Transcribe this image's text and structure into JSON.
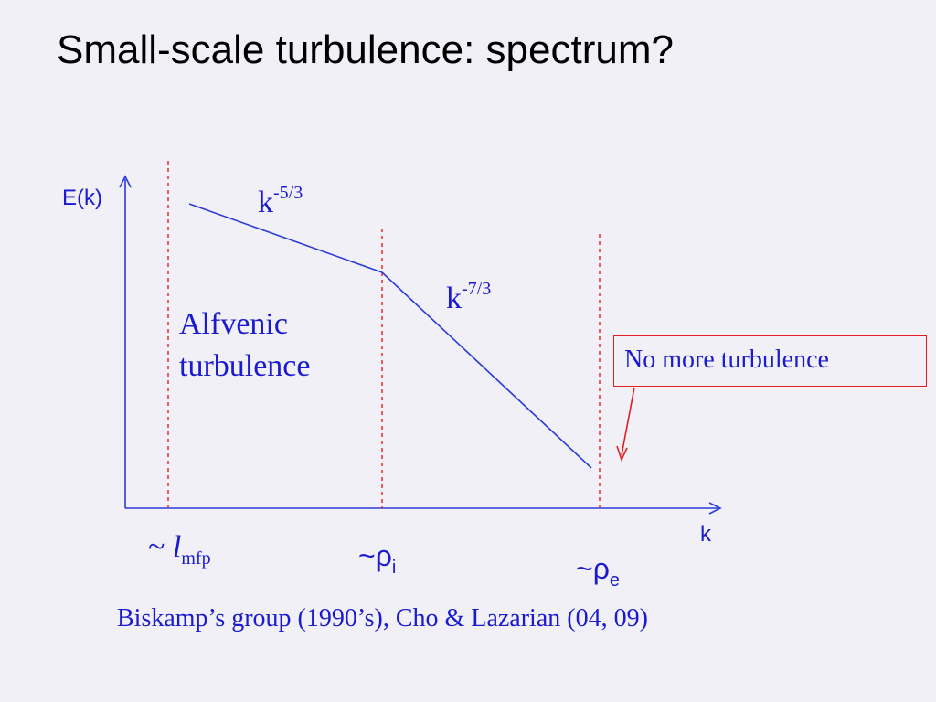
{
  "title": "Small-scale turbulence: spectrum?",
  "diagram": {
    "y_axis_label": "E(k)",
    "x_axis_label": "k",
    "slopes": [
      {
        "base": "k",
        "exponent": "-5/3"
      },
      {
        "base": "k",
        "exponent": "-7/3"
      }
    ],
    "region_label_line1": "Alfvenic",
    "region_label_line2": "turbulence",
    "ticks": {
      "mfp": {
        "prefix": "~ ",
        "symbol": "l",
        "sub": "mfp"
      },
      "ion": {
        "prefix": "~ρ",
        "sub": "i"
      },
      "electron": {
        "prefix": "~ρ",
        "sub": "e"
      }
    },
    "callout": "No more turbulence",
    "references": "Biskamp’s group (1990’s), Cho & Lazarian (04, 09)"
  },
  "colors": {
    "text_blue": "#1a1ad0",
    "line_blue": "#2a3ad8",
    "dashed_red": "#e02020",
    "background": "#f1f0f6"
  }
}
